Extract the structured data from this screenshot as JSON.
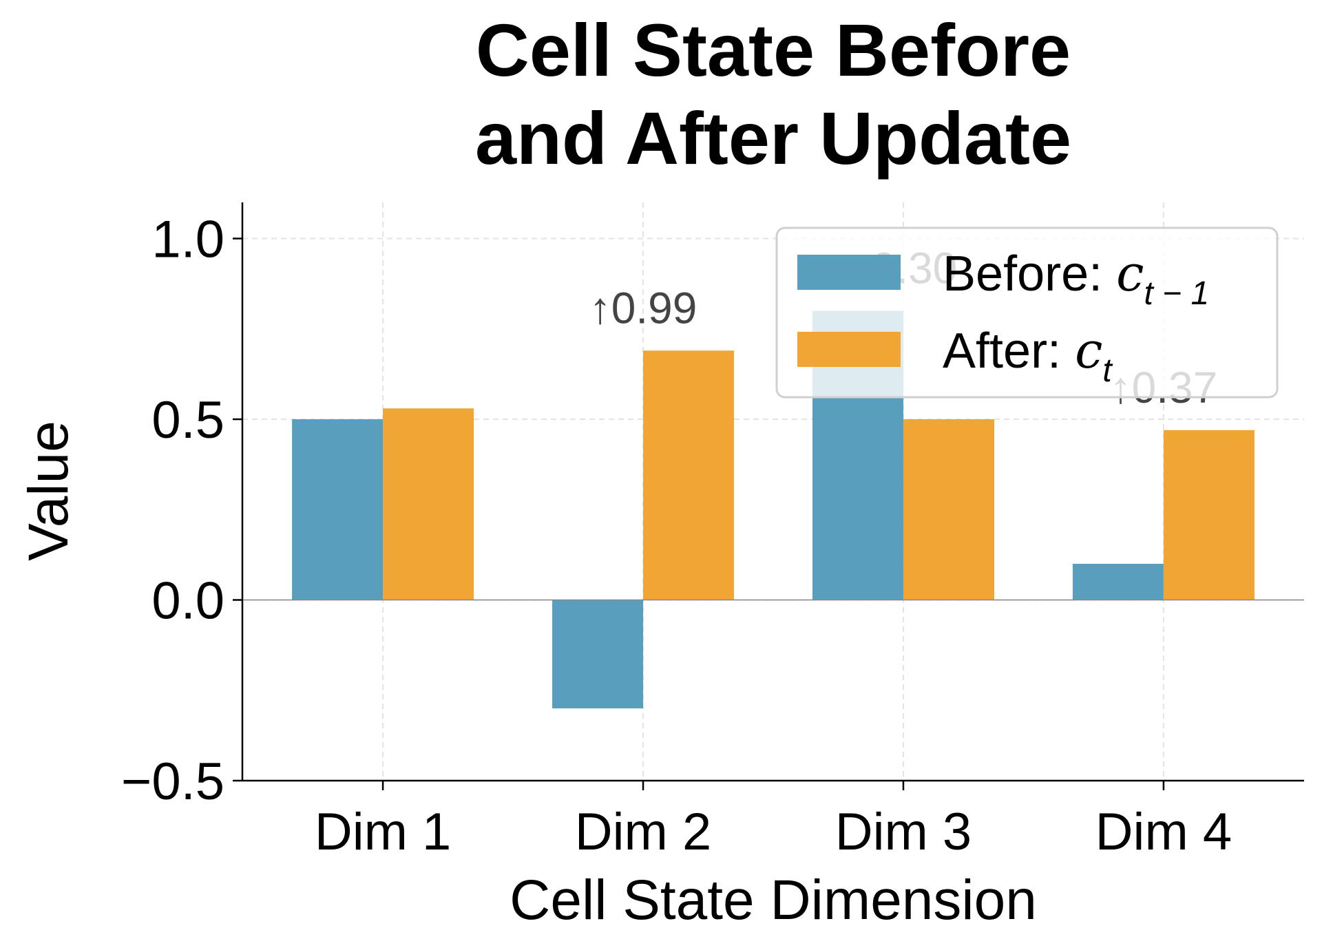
{
  "chart_data": {
    "type": "bar",
    "title": "Cell State Before\nand After Update",
    "xlabel": "Cell State Dimension",
    "ylabel": "Value",
    "categories": [
      "Dim 1",
      "Dim 2",
      "Dim 3",
      "Dim 4"
    ],
    "series": [
      {
        "name": "Before: c_{t-1}",
        "legend_main": "Before: ",
        "legend_sym": "c",
        "legend_sub": "t − 1",
        "color": "#5a9ebe",
        "values": [
          0.5,
          -0.3,
          0.8,
          0.1
        ]
      },
      {
        "name": "After: c_t",
        "legend_main": "After: ",
        "legend_sym": "c",
        "legend_sub": "t",
        "color": "#f0a535",
        "values": [
          0.53,
          0.69,
          0.5,
          0.47
        ]
      }
    ],
    "annotations": [
      {
        "category": "Dim 2",
        "text": "↑0.99"
      },
      {
        "category": "Dim 3",
        "text": "↓0.30"
      },
      {
        "category": "Dim 4",
        "text": "↑0.37"
      }
    ],
    "ylim": [
      -0.5,
      1.1
    ],
    "yticks": [
      "−0.5",
      "0.0",
      "0.5",
      "1.0"
    ],
    "ytick_values": [
      -0.5,
      0.0,
      0.5,
      1.0
    ],
    "grid": true,
    "legend_position": "top-right"
  }
}
